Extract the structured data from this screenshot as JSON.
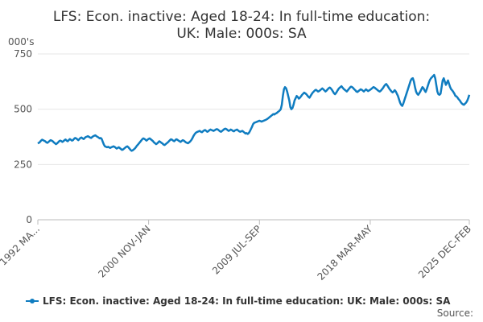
{
  "chart_data": {
    "type": "line",
    "title": "LFS: Econ. inactive: Aged 18-24: In full-time education: UK: Male: 000s: SA",
    "y_axis_label": "000's",
    "source_label": "Source:",
    "ylim": [
      0,
      750
    ],
    "yticks": [
      0,
      250,
      500,
      750
    ],
    "grid": true,
    "legend": "bottom",
    "categories": [
      "1992 MA...",
      null,
      null,
      null,
      null,
      null,
      null,
      null,
      null,
      null,
      null,
      null,
      null,
      null,
      null,
      null,
      null,
      null,
      null,
      null,
      null,
      null,
      null,
      null,
      null,
      null,
      null,
      null,
      null,
      null,
      null,
      null,
      null,
      null,
      null,
      null,
      null,
      null,
      null,
      null,
      null,
      null,
      null,
      null,
      null,
      null,
      null,
      null,
      null,
      null,
      null,
      null,
      null,
      null,
      null,
      null,
      null,
      null,
      null,
      null,
      null,
      null,
      null,
      null,
      null,
      null,
      null,
      null,
      null,
      null,
      null,
      null,
      null,
      null,
      null,
      null,
      null,
      null,
      null,
      null,
      null,
      null,
      null,
      null,
      null,
      null,
      null,
      null,
      null,
      null,
      null,
      null,
      null,
      null,
      null,
      null,
      null,
      null,
      null,
      null,
      null,
      null,
      null,
      null,
      "2000 NOV-JAN",
      null,
      null,
      null,
      null,
      null,
      null,
      null,
      null,
      null,
      null,
      null,
      null,
      null,
      null,
      null,
      null,
      null,
      null,
      null,
      null,
      null,
      null,
      null,
      null,
      null,
      null,
      null,
      null,
      null,
      null,
      null,
      null,
      null,
      null,
      null,
      null,
      null,
      null,
      null,
      null,
      null,
      null,
      null,
      null,
      null,
      null,
      null,
      null,
      null,
      null,
      null,
      null,
      null,
      null,
      null,
      null,
      null,
      null,
      null,
      null,
      null,
      null,
      null,
      null,
      null,
      null,
      null,
      null,
      null,
      null,
      null,
      null,
      null,
      null,
      null,
      null,
      null,
      null,
      null,
      null,
      null,
      null,
      null,
      null,
      null,
      null,
      null,
      null,
      null,
      null,
      null,
      null,
      null,
      null,
      null,
      null,
      null,
      null,
      null,
      null,
      null,
      null,
      null,
      "2009 JUL-SEP",
      null,
      null,
      null,
      null,
      null,
      null,
      null,
      null,
      null,
      null,
      null,
      null,
      null,
      null,
      null,
      null,
      null,
      null,
      null,
      null,
      null,
      null,
      null,
      null,
      null,
      null,
      null,
      null,
      null,
      null,
      null,
      null,
      null,
      null,
      null,
      null,
      null,
      null,
      null,
      null,
      null,
      null,
      null,
      null,
      null,
      null,
      null,
      null,
      null,
      null,
      null,
      null,
      null,
      null,
      null,
      null,
      null,
      null,
      null,
      null,
      null,
      null,
      null,
      null,
      null,
      null,
      null,
      null,
      null,
      null,
      null,
      null,
      null,
      null,
      null,
      null,
      null,
      null,
      null,
      null,
      null,
      null,
      null,
      null,
      null,
      null,
      null,
      null,
      null,
      null,
      null,
      null,
      null,
      null,
      null,
      null,
      null,
      null,
      null,
      null,
      null,
      null,
      null,
      "2018 MAR-MAY",
      null,
      null,
      null,
      null,
      null,
      null,
      null,
      null,
      null,
      null,
      null,
      null,
      null,
      null,
      null,
      null,
      null,
      null,
      null,
      null,
      null,
      null,
      null,
      null,
      null,
      null,
      null,
      null,
      null,
      null,
      null,
      null,
      null,
      null,
      null,
      null,
      null,
      null,
      null,
      null,
      null,
      null,
      null,
      null,
      null,
      null,
      null,
      null,
      null,
      null,
      null,
      null,
      null,
      null,
      null,
      null,
      null,
      null,
      null,
      null,
      null,
      null,
      null,
      null,
      null,
      null,
      null,
      null,
      null,
      null,
      null,
      null,
      null,
      null,
      null,
      null,
      null,
      null,
      null,
      null,
      null,
      null,
      null,
      null,
      null,
      null,
      null,
      null,
      null,
      null,
      null,
      null,
      "2025 DEC-FEB"
    ],
    "series": [
      {
        "name": "LFS: Econ. inactive: Aged 18-24: In full-time education: UK: Male: 000s: SA",
        "color": "#0f7cc0",
        "values": [
          345,
          348,
          352,
          358,
          362,
          360,
          357,
          355,
          350,
          348,
          352,
          356,
          360,
          358,
          355,
          350,
          346,
          342,
          345,
          350,
          355,
          358,
          356,
          352,
          355,
          360,
          363,
          358,
          355,
          360,
          365,
          362,
          358,
          360,
          366,
          370,
          368,
          364,
          360,
          365,
          370,
          372,
          368,
          365,
          370,
          374,
          376,
          378,
          375,
          372,
          370,
          374,
          378,
          380,
          382,
          378,
          375,
          372,
          368,
          370,
          365,
          352,
          340,
          332,
          330,
          328,
          330,
          327,
          325,
          328,
          330,
          332,
          330,
          326,
          322,
          325,
          328,
          324,
          320,
          316,
          318,
          322,
          326,
          330,
          332,
          328,
          322,
          316,
          312,
          314,
          318,
          322,
          328,
          335,
          340,
          346,
          352,
          358,
          364,
          368,
          366,
          362,
          358,
          362,
          366,
          368,
          364,
          360,
          356,
          350,
          346,
          342,
          345,
          350,
          355,
          352,
          348,
          345,
          340,
          338,
          342,
          346,
          350,
          355,
          360,
          364,
          362,
          358,
          355,
          360,
          364,
          362,
          358,
          355,
          352,
          356,
          360,
          358,
          354,
          350,
          348,
          346,
          350,
          354,
          360,
          368,
          378,
          386,
          392,
          396,
          398,
          400,
          402,
          398,
          396,
          400,
          404,
          406,
          402,
          398,
          400,
          405,
          408,
          406,
          404,
          402,
          405,
          408,
          410,
          408,
          404,
          400,
          398,
          402,
          406,
          410,
          412,
          410,
          406,
          402,
          404,
          408,
          406,
          402,
          400,
          404,
          406,
          408,
          404,
          400,
          398,
          400,
          402,
          398,
          394,
          390,
          392,
          388,
          392,
          400,
          410,
          420,
          432,
          438,
          440,
          442,
          444,
          446,
          448,
          446,
          444,
          446,
          448,
          450,
          452,
          455,
          458,
          462,
          466,
          470,
          474,
          478,
          476,
          480,
          482,
          486,
          490,
          494,
          500,
          520,
          560,
          590,
          600,
          595,
          580,
          560,
          540,
          510,
          500,
          505,
          520,
          540,
          550,
          560,
          555,
          548,
          552,
          558,
          565,
          570,
          575,
          572,
          568,
          562,
          556,
          552,
          560,
          568,
          575,
          580,
          585,
          588,
          584,
          580,
          582,
          586,
          590,
          594,
          590,
          585,
          580,
          584,
          590,
          595,
          598,
          594,
          588,
          580,
          572,
          568,
          574,
          582,
          590,
          596,
          600,
          604,
          598,
          592,
          588,
          584,
          580,
          586,
          592,
          598,
          602,
          600,
          596,
          590,
          586,
          580,
          578,
          582,
          586,
          590,
          588,
          584,
          580,
          585,
          590,
          586,
          582,
          585,
          588,
          592,
          596,
          600,
          598,
          594,
          590,
          586,
          582,
          580,
          584,
          590,
          596,
          604,
          610,
          614,
          608,
          600,
          592,
          586,
          580,
          576,
          580,
          586,
          580,
          570,
          560,
          545,
          530,
          520,
          515,
          525,
          540,
          555,
          570,
          585,
          600,
          615,
          630,
          638,
          640,
          625,
          600,
          580,
          570,
          565,
          572,
          580,
          590,
          600,
          595,
          585,
          578,
          590,
          605,
          620,
          632,
          640,
          645,
          650,
          655,
          640,
          610,
          580,
          568,
          565,
          570,
          600,
          630,
          640,
          625,
          610,
          620,
          630,
          615,
          600,
          590,
          585,
          578,
          570,
          560,
          558,
          552,
          545,
          540,
          532,
          526,
          522,
          520,
          525,
          530,
          538,
          550,
          565
        ]
      }
    ]
  }
}
